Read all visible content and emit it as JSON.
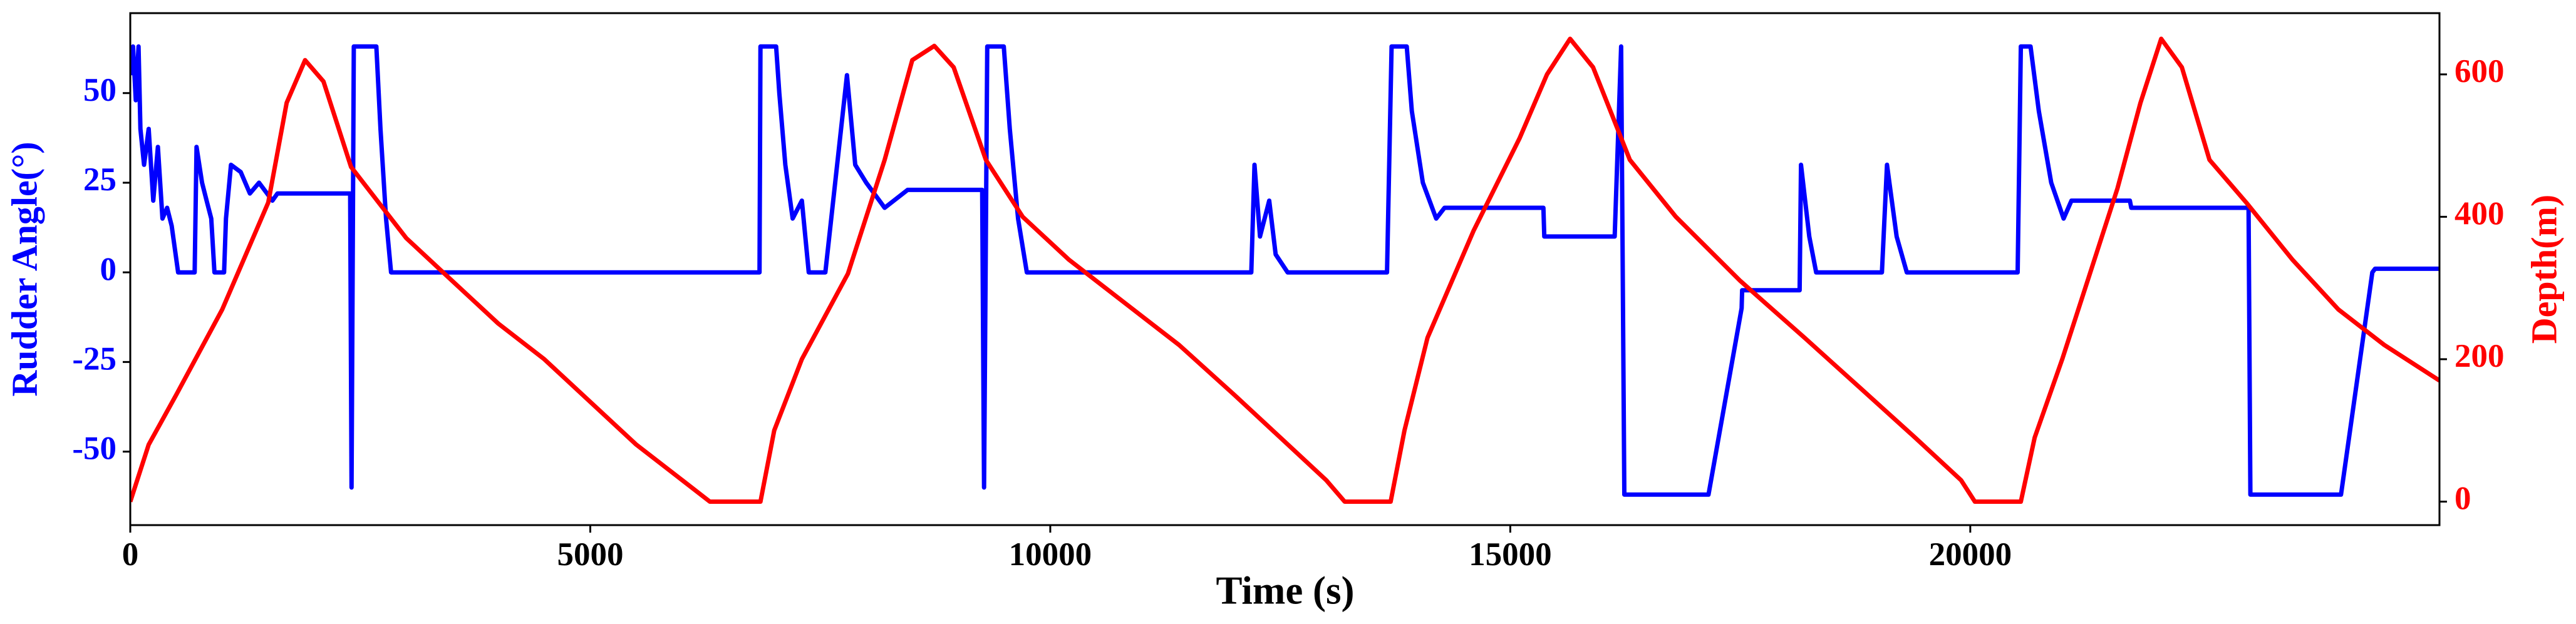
{
  "chart_data": {
    "type": "line",
    "xlabel": "Time (s)",
    "ylabel": "Rudder Angle(°)",
    "y2label": "Depth(m)",
    "xlim": [
      0,
      25100
    ],
    "xticks": [
      0,
      5000,
      10000,
      15000,
      20000
    ],
    "ylim": [
      -70.5,
      72.3
    ],
    "yticks": [
      -50,
      -25,
      0,
      25,
      50
    ],
    "y2lim": [
      -33,
      686
    ],
    "y2ticks": [
      0,
      200,
      400,
      600
    ],
    "series": [
      {
        "color": "#0000ff",
        "axis": "y",
        "x": [
          0,
          30,
          60,
          90,
          110,
          150,
          200,
          250,
          300,
          350,
          400,
          450,
          520,
          700,
          720,
          780,
          830,
          880,
          915,
          1020,
          1040,
          1095,
          1200,
          1300,
          1400,
          1545,
          1600,
          2390,
          2405,
          2430,
          2675,
          2720,
          2780,
          2835,
          6840,
          6850,
          7020,
          7055,
          7120,
          7200,
          7300,
          7375,
          7555,
          7790,
          7880,
          8000,
          8200,
          8450,
          9260,
          9280,
          9315,
          9495,
          9560,
          9650,
          9745,
          12185,
          12220,
          12280,
          12380,
          12450,
          12580,
          13660,
          13710,
          13875,
          13930,
          14050,
          14195,
          14285,
          15360,
          15370,
          16135,
          16205,
          16240,
          17155,
          17515,
          17520,
          18145,
          18160,
          18250,
          18325,
          19040,
          19095,
          19200,
          19310,
          20515,
          20550,
          20655,
          20745,
          20880,
          21015,
          21100,
          21735,
          21750,
          23025,
          23045,
          24030,
          24370,
          24400,
          25100
        ],
        "values": [
          55,
          63,
          48,
          63,
          40,
          30,
          40,
          20,
          35,
          15,
          18,
          13,
          0,
          0,
          35,
          25,
          20,
          15,
          0,
          0,
          15,
          30,
          28,
          22,
          25,
          20,
          22,
          22,
          -60,
          63,
          63,
          40,
          15,
          0,
          0,
          63,
          63,
          50,
          30,
          15,
          20,
          0,
          0,
          55,
          30,
          25,
          18,
          23,
          23,
          -60,
          63,
          63,
          40,
          15,
          0,
          0,
          30,
          10,
          20,
          5,
          0,
          0,
          63,
          63,
          45,
          25,
          15,
          18,
          18,
          10,
          10,
          63,
          -62,
          -62,
          -10,
          -5,
          -5,
          30,
          10,
          0,
          0,
          30,
          10,
          0,
          0,
          63,
          63,
          45,
          25,
          15,
          20,
          20,
          18,
          18,
          -62,
          -62,
          0,
          1,
          1
        ]
      },
      {
        "color": "#ff0000",
        "axis": "y2",
        "x": [
          0,
          200,
          500,
          1000,
          1500,
          1700,
          1900,
          2100,
          2400,
          2700,
          3000,
          3500,
          4000,
          4500,
          5000,
          5500,
          6000,
          6300,
          6850,
          7000,
          7300,
          7800,
          8200,
          8500,
          8740,
          8950,
          9300,
          9700,
          10200,
          10800,
          11400,
          12000,
          12500,
          13000,
          13200,
          13700,
          13850,
          14100,
          14600,
          15100,
          15400,
          15650,
          15900,
          16300,
          16800,
          17500,
          18200,
          18800,
          19400,
          19900,
          20050,
          20550,
          20700,
          21000,
          21300,
          21600,
          21850,
          22075,
          22300,
          22600,
          23000,
          23500,
          24000,
          24500,
          25100
        ],
        "values": [
          0,
          80,
          150,
          270,
          420,
          560,
          620,
          590,
          470,
          420,
          370,
          310,
          250,
          200,
          140,
          80,
          30,
          0,
          0,
          100,
          200,
          320,
          480,
          620,
          640,
          610,
          480,
          400,
          340,
          280,
          220,
          150,
          90,
          30,
          0,
          0,
          100,
          230,
          380,
          510,
          600,
          650,
          610,
          480,
          400,
          310,
          230,
          160,
          90,
          30,
          0,
          0,
          90,
          200,
          320,
          440,
          560,
          650,
          610,
          480,
          420,
          340,
          270,
          220,
          170
        ]
      }
    ]
  }
}
